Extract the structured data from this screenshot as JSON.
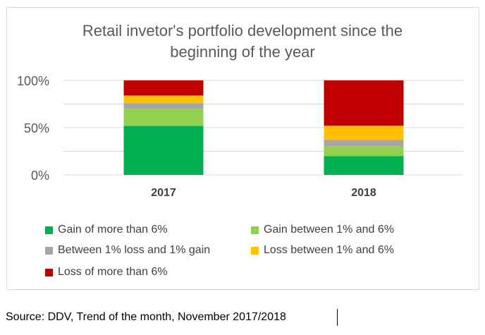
{
  "chart_data": {
    "type": "bar",
    "stacked": true,
    "normalized": true,
    "title_lines": [
      "Retail invetor's portfolio development since the",
      "beginning of the year"
    ],
    "categories": [
      "2017",
      "2018"
    ],
    "yticks": [
      "0%",
      "50%",
      "100%"
    ],
    "ylim": [
      0,
      100
    ],
    "grid": true,
    "legend_position": "bottom",
    "series": [
      {
        "name": "Gain of more than 6%",
        "color": "#00b050",
        "values": [
          52,
          20
        ]
      },
      {
        "name": "Gain between 1% and 6%",
        "color": "#92d050",
        "values": [
          18,
          10
        ]
      },
      {
        "name": "Between 1% loss and 1% gain",
        "color": "#a6a6a6",
        "values": [
          6,
          7
        ]
      },
      {
        "name": "Loss between 1% and 6%",
        "color": "#ffc000",
        "values": [
          8,
          15
        ]
      },
      {
        "name": "Loss of more than 6%",
        "color": "#c00000",
        "values": [
          16,
          48
        ]
      }
    ]
  },
  "source_text": "Source: DDV, Trend of the month, November 2017/2018"
}
